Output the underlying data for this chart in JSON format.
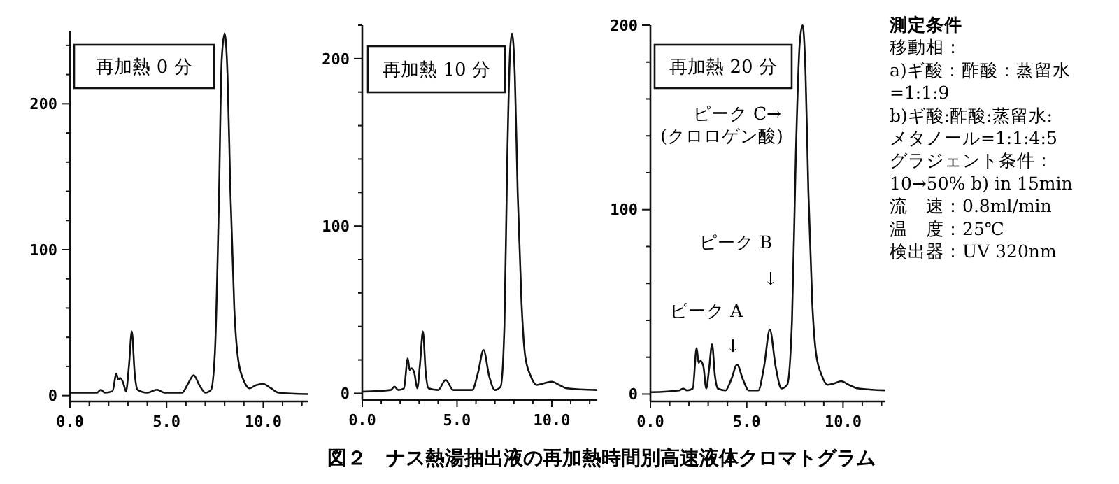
{
  "chart_data": [
    {
      "type": "line",
      "title": "再加熱 0 分",
      "xlim": [
        0,
        12.3
      ],
      "ylim": [
        -4,
        250
      ],
      "xticks": [
        {
          "value": 0,
          "label": "0.0"
        },
        {
          "value": 1,
          "label": null
        },
        {
          "value": 2,
          "label": null
        },
        {
          "value": 3,
          "label": null
        },
        {
          "value": 4,
          "label": null
        },
        {
          "value": 5,
          "label": "5.0"
        },
        {
          "value": 6,
          "label": null
        },
        {
          "value": 7,
          "label": null
        },
        {
          "value": 8,
          "label": null
        },
        {
          "value": 9,
          "label": null
        },
        {
          "value": 10,
          "label": "10.0"
        },
        {
          "value": 11,
          "label": null
        },
        {
          "value": 12,
          "label": null
        }
      ],
      "yticks": [
        0,
        {
          "value": 20,
          "label": null
        },
        {
          "value": 40,
          "label": null
        },
        {
          "value": 60,
          "label": null
        },
        {
          "value": 80,
          "label": null
        },
        100,
        {
          "value": 120,
          "label": null
        },
        {
          "value": 140,
          "label": null
        },
        {
          "value": 160,
          "label": null
        },
        {
          "value": 180,
          "label": null
        },
        200,
        {
          "value": 220,
          "label": null
        },
        {
          "value": 240,
          "label": null
        }
      ],
      "grid": false,
      "marker": "none",
      "line_style": "solid",
      "series": [
        {
          "color": "#111111",
          "x": [
            0,
            1.4,
            1.6,
            1.8,
            2.2,
            2.4,
            2.5,
            2.6,
            2.75,
            2.9,
            3.05,
            3.2,
            3.35,
            3.5,
            4.0,
            4.5,
            4.9,
            5.8,
            6.1,
            6.4,
            6.7,
            7.0,
            7.3,
            7.5,
            7.7,
            7.85,
            8.0,
            8.15,
            8.3,
            8.5,
            8.7,
            9.0,
            9.3,
            9.6,
            10.0,
            10.4,
            10.8,
            12.3
          ],
          "values": [
            2,
            2,
            4,
            2,
            3,
            15,
            11,
            12,
            9,
            3,
            20,
            44,
            15,
            4,
            2,
            4,
            2,
            2,
            8,
            14,
            7,
            2,
            4,
            30,
            130,
            230,
            248,
            220,
            140,
            60,
            25,
            10,
            5,
            7,
            8,
            5,
            2,
            1
          ]
        }
      ]
    },
    {
      "type": "line",
      "title": "再加熱 10 分",
      "xlim": [
        0,
        12.4
      ],
      "ylim": [
        -4,
        220
      ],
      "xticks": [
        {
          "value": 0,
          "label": "0.0"
        },
        {
          "value": 1,
          "label": null
        },
        {
          "value": 2,
          "label": null
        },
        {
          "value": 3,
          "label": null
        },
        {
          "value": 4,
          "label": null
        },
        {
          "value": 5,
          "label": "5.0"
        },
        {
          "value": 6,
          "label": null
        },
        {
          "value": 7,
          "label": null
        },
        {
          "value": 8,
          "label": null
        },
        {
          "value": 9,
          "label": null
        },
        {
          "value": 10,
          "label": "10.0"
        },
        {
          "value": 11,
          "label": null
        },
        {
          "value": 12,
          "label": null
        }
      ],
      "yticks": [
        0,
        {
          "value": 20,
          "label": null
        },
        {
          "value": 40,
          "label": null
        },
        {
          "value": 60,
          "label": null
        },
        {
          "value": 80,
          "label": null
        },
        100,
        {
          "value": 120,
          "label": null
        },
        {
          "value": 140,
          "label": null
        },
        {
          "value": 160,
          "label": null
        },
        {
          "value": 180,
          "label": null
        },
        200,
        {
          "value": 220,
          "label": null
        }
      ],
      "grid": false,
      "marker": "none",
      "line_style": "solid",
      "series": [
        {
          "color": "#111111",
          "x": [
            0,
            1.5,
            1.7,
            1.9,
            2.2,
            2.4,
            2.5,
            2.6,
            2.75,
            2.9,
            3.05,
            3.2,
            3.35,
            3.5,
            4.0,
            4.4,
            4.8,
            5.8,
            6.1,
            6.4,
            6.7,
            7.0,
            7.3,
            7.5,
            7.65,
            7.8,
            7.9,
            8.05,
            8.2,
            8.4,
            8.6,
            8.9,
            9.2,
            9.6,
            10.0,
            10.4,
            10.8,
            12.4
          ],
          "values": [
            1,
            2,
            4,
            2,
            3,
            21,
            14,
            15,
            12,
            3,
            18,
            37,
            12,
            3,
            2,
            8,
            2,
            2,
            12,
            26,
            10,
            2,
            4,
            40,
            140,
            205,
            215,
            190,
            120,
            55,
            22,
            10,
            5,
            6,
            7,
            5,
            3,
            2
          ]
        }
      ]
    },
    {
      "type": "line",
      "title": "再加熱 20 分",
      "xlim": [
        0,
        12.2
      ],
      "ylim": [
        -4,
        200
      ],
      "xticks": [
        {
          "value": 0,
          "label": "0.0"
        },
        {
          "value": 1,
          "label": null
        },
        {
          "value": 2,
          "label": null
        },
        {
          "value": 3,
          "label": null
        },
        {
          "value": 4,
          "label": null
        },
        {
          "value": 5,
          "label": "5.0"
        },
        {
          "value": 6,
          "label": null
        },
        {
          "value": 7,
          "label": null
        },
        {
          "value": 8,
          "label": null
        },
        {
          "value": 9,
          "label": null
        },
        {
          "value": 10,
          "label": "10.0"
        },
        {
          "value": 11,
          "label": null
        },
        {
          "value": 12,
          "label": null
        }
      ],
      "yticks": [
        0,
        {
          "value": 20,
          "label": null
        },
        {
          "value": 40,
          "label": null
        },
        {
          "value": 60,
          "label": null
        },
        {
          "value": 80,
          "label": null
        },
        100,
        {
          "value": 120,
          "label": null
        },
        {
          "value": 140,
          "label": null
        },
        {
          "value": 160,
          "label": null
        },
        {
          "value": 180,
          "label": null
        },
        200
      ],
      "grid": false,
      "marker": "none",
      "line_style": "solid",
      "series": [
        {
          "color": "#111111",
          "x": [
            0,
            1.5,
            1.7,
            1.9,
            2.2,
            2.4,
            2.5,
            2.6,
            2.75,
            2.9,
            3.05,
            3.2,
            3.35,
            3.5,
            3.9,
            4.2,
            4.5,
            4.8,
            5.1,
            5.6,
            5.9,
            6.2,
            6.5,
            6.8,
            7.1,
            7.35,
            7.55,
            7.75,
            7.9,
            8.05,
            8.2,
            8.4,
            8.6,
            8.9,
            9.2,
            9.6,
            9.9,
            10.3,
            10.8,
            12.2
          ],
          "values": [
            1,
            2,
            3,
            2,
            3,
            25,
            17,
            18,
            15,
            3,
            14,
            27,
            10,
            3,
            2,
            8,
            16,
            8,
            2,
            2,
            15,
            35,
            15,
            3,
            5,
            40,
            130,
            190,
            200,
            175,
            110,
            50,
            22,
            10,
            5,
            6,
            7,
            5,
            3,
            2
          ]
        }
      ],
      "annotations": [
        "ピーク C→",
        "(クロロゲン酸)",
        "ピーク B",
        "↓",
        "ピーク A",
        "↓"
      ]
    },
    {
      "type": "other",
      "title": "測定条件",
      "annotations": [
        "移動相：",
        "a)ギ酸：酢酸：蒸留水",
        "=1:1:9",
        "b)ギ酸:酢酸:蒸留水:",
        "メタノール=1:1:4:5",
        "グラジェント条件：",
        "10→50% b) in 15min",
        "流　速：0.8ml/min",
        "温　度：25℃",
        "検出器：UV 320nm"
      ]
    },
    {
      "type": "other",
      "title": "図２　ナス熱湯抽出液の再加熱時間別高速液体クロマトグラム"
    }
  ]
}
